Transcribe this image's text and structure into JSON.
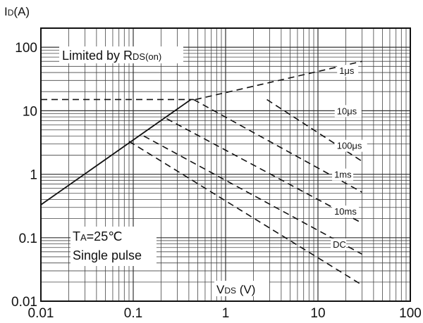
{
  "chart_data": {
    "type": "line",
    "title": "",
    "y_axis_title": {
      "main": "I",
      "sub": "D",
      "unit": "(A)"
    },
    "x_axis_title": {
      "main": "V",
      "sub": "DS",
      "unit": " (V)"
    },
    "xscale": "log",
    "yscale": "log",
    "xlim": [
      0.01,
      100
    ],
    "ylim": [
      0.01,
      200
    ],
    "x_ticks": [
      {
        "value": 0.01,
        "label": "0.01"
      },
      {
        "value": 0.1,
        "label": "0.1"
      },
      {
        "value": 1,
        "label": "1"
      },
      {
        "value": 10,
        "label": "10"
      },
      {
        "value": 100,
        "label": "100"
      }
    ],
    "y_ticks": [
      {
        "value": 0.01,
        "label": "0.01"
      },
      {
        "value": 0.1,
        "label": "0.1"
      },
      {
        "value": 1,
        "label": "1"
      },
      {
        "value": 10,
        "label": "10"
      },
      {
        "value": 100,
        "label": "100"
      }
    ],
    "grid": true,
    "rds_limit_label": {
      "prefix": "Limited by R",
      "sub": "DS(on)"
    },
    "conditions": {
      "ta": {
        "main": "T",
        "sub": "A",
        "rest": "=25℃"
      },
      "pulse": "Single pulse"
    },
    "series": [
      {
        "label": "1μs",
        "style": "dashed",
        "x": [
          0.47,
          30
        ],
        "y": [
          15,
          60
        ]
      },
      {
        "label": "10μs",
        "style": "dashed",
        "x": [
          2.8,
          30
        ],
        "y": [
          15,
          1.6
        ]
      },
      {
        "label": "100μs",
        "style": "dashed",
        "x": [
          0.45,
          30
        ],
        "y": [
          15,
          0.52
        ]
      },
      {
        "label": "1ms",
        "style": "dashed",
        "x": [
          0.23,
          30
        ],
        "y": [
          7.5,
          0.17
        ]
      },
      {
        "label": "10ms",
        "style": "dashed",
        "x": [
          0.13,
          30
        ],
        "y": [
          4.0,
          0.055
        ]
      },
      {
        "label": "DC",
        "style": "dashed",
        "x": [
          0.09,
          30
        ],
        "y": [
          3.3,
          0.018
        ]
      },
      {
        "label": "",
        "style": "solid",
        "x": [
          0.01,
          0.42
        ],
        "y": [
          0.33,
          15
        ]
      },
      {
        "label": "",
        "style": "dashed",
        "x": [
          0.01,
          0.45
        ],
        "y": [
          15,
          15
        ]
      }
    ],
    "series_labels": [
      {
        "text": "1μs",
        "x": 17,
        "y": 38
      },
      {
        "text": "10μs",
        "x": 16,
        "y": 8.8
      },
      {
        "text": "100μs",
        "x": 16,
        "y": 2.5
      },
      {
        "text": "1ms",
        "x": 15,
        "y": 0.88
      },
      {
        "text": "10ms",
        "x": 15,
        "y": 0.23
      },
      {
        "text": "DC",
        "x": 14.5,
        "y": 0.07
      }
    ]
  }
}
